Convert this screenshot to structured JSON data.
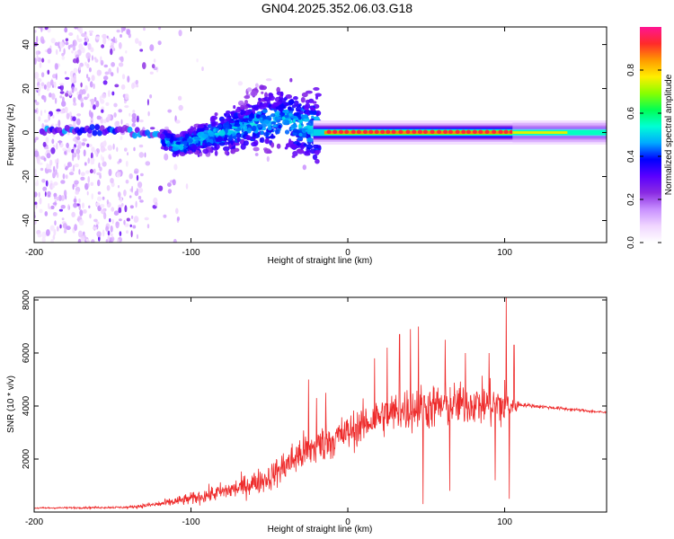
{
  "page": {
    "title": "GN04.2025.352.06.03.G18"
  },
  "colors": {
    "snr_line": "#ee2a2a",
    "colormap": [
      "#ffffff",
      "#f0d6ff",
      "#c890ff",
      "#8a2be2",
      "#5a00ff",
      "#0000ff",
      "#00aaff",
      "#00ffd5",
      "#00ff55",
      "#88ff00",
      "#ffee00",
      "#ff9900",
      "#ff2a2a",
      "#ff1493"
    ]
  },
  "chart_data": [
    {
      "type": "heatmap",
      "title": "",
      "xlabel": "Height of straight line (km)",
      "ylabel": "Frequency (Hz)",
      "xlim": [
        -200,
        165
      ],
      "ylim": [
        -50,
        48
      ],
      "xticks": [
        -200,
        -100,
        0,
        100
      ],
      "yticks": [
        -40,
        -20,
        0,
        20,
        40
      ],
      "colorbar": {
        "label": "Normalized spectral amplitude",
        "range": [
          0,
          1
        ],
        "ticks": [
          0,
          0.2,
          0.4,
          0.6,
          0.8
        ]
      },
      "ridge": {
        "description": "dominant frequency ridge",
        "points": [
          {
            "x": -195,
            "y": 1
          },
          {
            "x": -150,
            "y": 1
          },
          {
            "x": -125,
            "y": 0
          },
          {
            "x": -110,
            "y": -6
          },
          {
            "x": -90,
            "y": -2
          },
          {
            "x": -60,
            "y": 4
          },
          {
            "x": -40,
            "y": 6
          },
          {
            "x": -25,
            "y": 2
          },
          {
            "x": 0,
            "y": 0
          },
          {
            "x": 50,
            "y": 0
          },
          {
            "x": 100,
            "y": 0
          },
          {
            "x": 165,
            "y": 0
          }
        ]
      }
    },
    {
      "type": "line",
      "title": "",
      "xlabel": "Height of straight line (km)",
      "ylabel": "SNR (10 * v/v)",
      "xlim": [
        -200,
        165
      ],
      "ylim": [
        0,
        8100
      ],
      "xticks": [
        -200,
        -100,
        0,
        100
      ],
      "yticks": [
        2000,
        4000,
        6000,
        8000
      ],
      "envelope": [
        {
          "x": -200,
          "base": 150,
          "amp": 60
        },
        {
          "x": -140,
          "base": 180,
          "amp": 80
        },
        {
          "x": -120,
          "base": 300,
          "amp": 250
        },
        {
          "x": -100,
          "base": 500,
          "amp": 450
        },
        {
          "x": -70,
          "base": 900,
          "amp": 800
        },
        {
          "x": -50,
          "base": 1300,
          "amp": 1000
        },
        {
          "x": -30,
          "base": 2200,
          "amp": 1500
        },
        {
          "x": -15,
          "base": 2600,
          "amp": 1500
        },
        {
          "x": 0,
          "base": 3000,
          "amp": 1400
        },
        {
          "x": 20,
          "base": 3600,
          "amp": 1500
        },
        {
          "x": 40,
          "base": 3900,
          "amp": 1700
        },
        {
          "x": 60,
          "base": 4000,
          "amp": 1700
        },
        {
          "x": 80,
          "base": 4100,
          "amp": 1500
        },
        {
          "x": 100,
          "base": 4000,
          "amp": 1900
        },
        {
          "x": 110,
          "base": 4050,
          "amp": 150
        },
        {
          "x": 165,
          "base": 3750,
          "amp": 100
        }
      ],
      "spikes": [
        {
          "x": -25,
          "y": 5000
        },
        {
          "x": -20,
          "y": 4300
        },
        {
          "x": -14,
          "y": 4500
        },
        {
          "x": 17,
          "y": 5800
        },
        {
          "x": 25,
          "y": 6200
        },
        {
          "x": 33,
          "y": 6700
        },
        {
          "x": 40,
          "y": 6900
        },
        {
          "x": 45,
          "y": 7000
        },
        {
          "x": 48,
          "y": 300
        },
        {
          "x": 62,
          "y": 6500
        },
        {
          "x": 65,
          "y": 800
        },
        {
          "x": 75,
          "y": 6000
        },
        {
          "x": 90,
          "y": 6000
        },
        {
          "x": 94,
          "y": 1200
        },
        {
          "x": 101,
          "y": 8100
        },
        {
          "x": 103,
          "y": 500
        },
        {
          "x": 106,
          "y": 6300
        }
      ]
    }
  ]
}
